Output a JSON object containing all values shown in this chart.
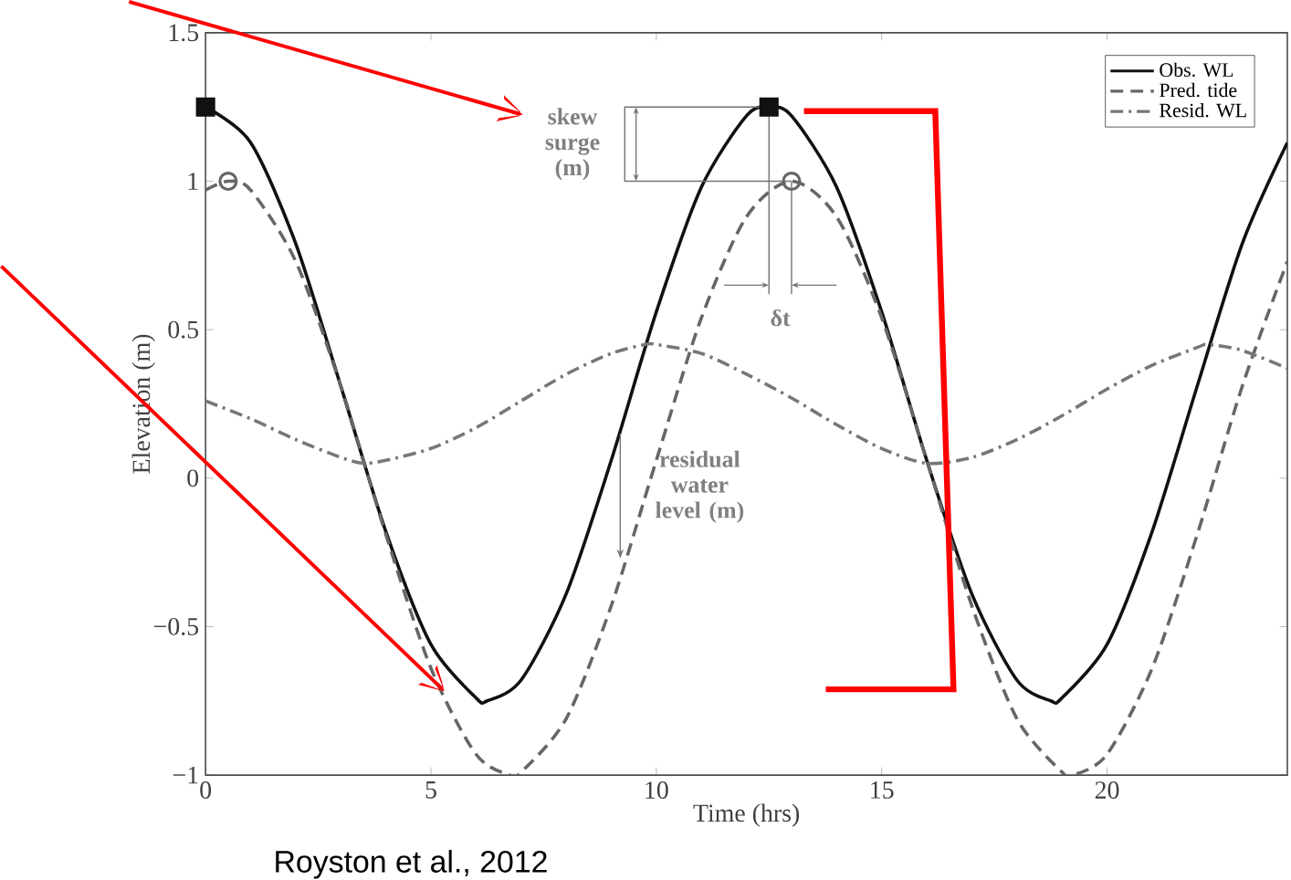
{
  "chart_data": {
    "type": "line",
    "xlabel": "Time (hrs)",
    "ylabel": "Elevation (m)",
    "xlim": [
      0,
      24
    ],
    "ylim": [
      -1,
      1.5
    ],
    "xticks": [
      0,
      5,
      10,
      15,
      20
    ],
    "yticks": [
      {
        "value": -1,
        "label": "−1"
      },
      {
        "value": -0.5,
        "label": "−0.5"
      },
      0,
      0.5,
      1,
      1.5
    ],
    "grid": false,
    "legend": "top right",
    "series": [
      {
        "name": "Obs. WL",
        "color": "#111111",
        "line_style": "solid",
        "x": [
          0,
          1,
          2,
          3,
          4,
          5,
          6,
          6.25,
          7,
          8,
          9,
          10,
          11,
          12,
          12.5,
          13,
          14,
          15,
          16,
          17,
          18,
          18.75,
          19,
          20,
          21,
          22,
          23,
          24
        ],
        "values": [
          1.25,
          1.13,
          0.79,
          0.31,
          -0.18,
          -0.56,
          -0.74,
          -0.75,
          -0.68,
          -0.39,
          0.06,
          0.56,
          0.98,
          1.22,
          1.25,
          1.22,
          0.98,
          0.56,
          0.06,
          -0.39,
          -0.68,
          -0.75,
          -0.74,
          -0.56,
          -0.18,
          0.31,
          0.79,
          1.13
        ]
      },
      {
        "name": "Pred. tide",
        "color": "#666666",
        "line_style": "dashed",
        "x": [
          0,
          0.5,
          1,
          2,
          3,
          4,
          5,
          6,
          6.75,
          7,
          8,
          9,
          10,
          11,
          12,
          13,
          14,
          15,
          16,
          17,
          18,
          19,
          19.25,
          20,
          21,
          22,
          23,
          24
        ],
        "values": [
          0.97,
          1.0,
          0.97,
          0.73,
          0.31,
          -0.19,
          -0.64,
          -0.93,
          -1.0,
          -0.99,
          -0.81,
          -0.43,
          0.06,
          0.54,
          0.88,
          1.0,
          0.88,
          0.54,
          0.06,
          -0.43,
          -0.81,
          -0.99,
          -1.0,
          -0.93,
          -0.64,
          -0.19,
          0.31,
          0.73
        ]
      },
      {
        "name": "Resid. WL",
        "color": "#777777",
        "line_style": "dashdot",
        "x": [
          0,
          1,
          2,
          3,
          3.5,
          4,
          5,
          6,
          7,
          8,
          9,
          9.75,
          10,
          11,
          12,
          13,
          14,
          15,
          16,
          17,
          18,
          19,
          20,
          21,
          22,
          22.25,
          23,
          24
        ],
        "values": [
          0.26,
          0.2,
          0.13,
          0.07,
          0.05,
          0.06,
          0.1,
          0.17,
          0.26,
          0.35,
          0.42,
          0.45,
          0.45,
          0.42,
          0.35,
          0.27,
          0.18,
          0.1,
          0.05,
          0.07,
          0.13,
          0.21,
          0.3,
          0.38,
          0.44,
          0.45,
          0.43,
          0.37
        ]
      },
      {
        "type": "scatter",
        "marker": "square",
        "color": "#111111",
        "x": [
          0,
          12.5
        ],
        "values": [
          1.25,
          1.25
        ]
      },
      {
        "type": "scatter",
        "marker": "circle",
        "color": "#666666",
        "x": [
          0.5,
          13
        ],
        "values": [
          1.0,
          1.0
        ]
      }
    ],
    "annotations": [
      {
        "text": "skew surge (m)",
        "x": 12.5,
        "y": 1.25
      },
      {
        "text": "δt",
        "x": 13,
        "y": 1.0
      },
      {
        "text": "residual water level (m)",
        "x": 9.2,
        "y": 0.15
      },
      "Royston et al., 2012"
    ]
  }
}
